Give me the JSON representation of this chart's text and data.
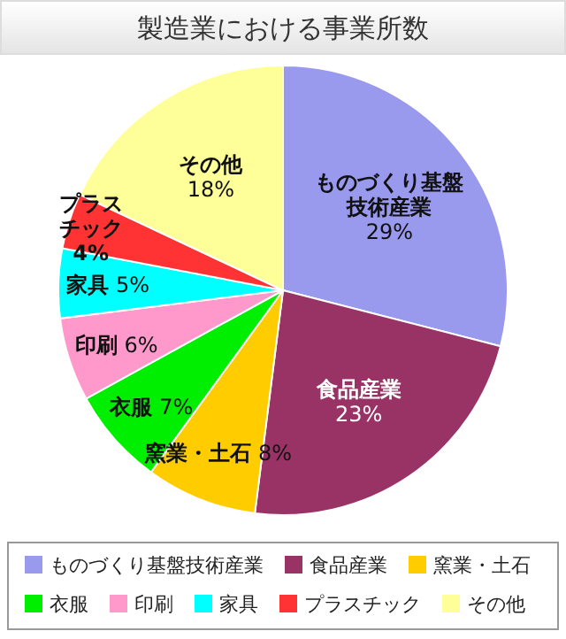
{
  "chart_data": {
    "type": "pie",
    "title": "製造業における事業所数",
    "categories": [
      "ものづくり基盤技術産業",
      "食品産業",
      "窯業・土石",
      "衣服",
      "印刷",
      "家具",
      "プラスチック",
      "その他"
    ],
    "values": [
      29,
      23,
      8,
      7,
      6,
      5,
      4,
      18
    ],
    "colors": [
      "#9999ee",
      "#993366",
      "#ffcc00",
      "#00ee00",
      "#ff99cc",
      "#00ffff",
      "#ff3333",
      "#ffff99"
    ],
    "value_labels": [
      "29%",
      "23%",
      "8%",
      "7%",
      "6%",
      "5%",
      "4%",
      "18%"
    ],
    "legend": "bottom"
  }
}
